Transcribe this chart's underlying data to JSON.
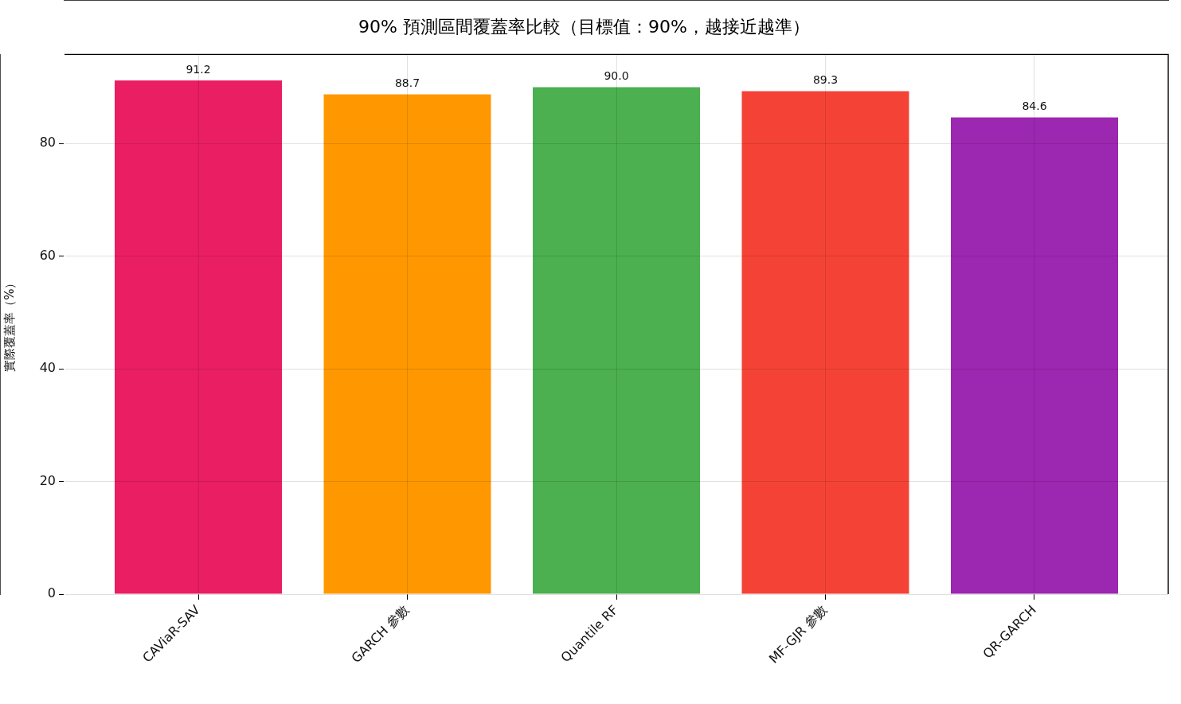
{
  "chart_data": {
    "type": "bar",
    "title": "90% 預測區間覆蓋率比較（目標值：90%，越接近越準）",
    "ylabel": "實際覆蓋率（%）",
    "categories": [
      "CAViaR-SAV",
      "GARCH 參數",
      "Quantile RF",
      "MF-GJR 參數",
      "QR-GARCH"
    ],
    "values": [
      91.2,
      88.7,
      90.0,
      89.3,
      84.6
    ],
    "value_labels": [
      "91.2",
      "88.7",
      "90.0",
      "89.3",
      "84.6"
    ],
    "colors": [
      "#e91e63",
      "#ff9800",
      "#4caf50",
      "#f44336",
      "#9c27b0"
    ],
    "ylim": [
      0,
      95.8
    ],
    "yticks": [
      0,
      20,
      40,
      60,
      80
    ],
    "grid": true
  }
}
